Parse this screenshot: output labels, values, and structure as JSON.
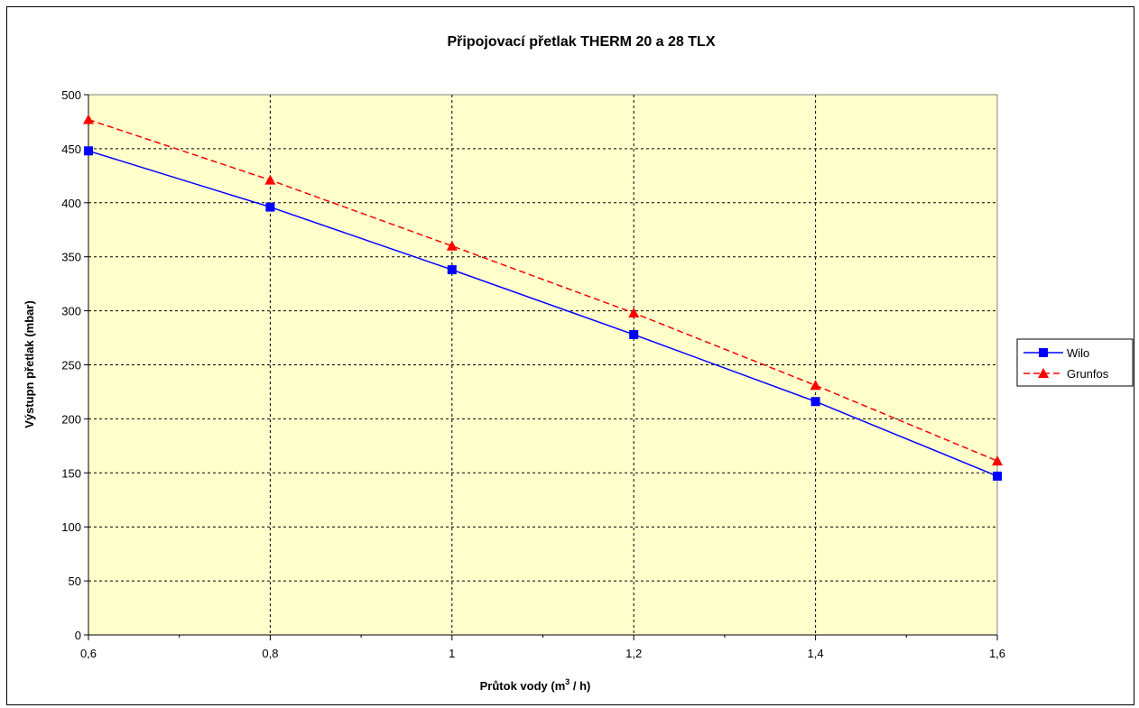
{
  "chart_data": {
    "type": "line",
    "title": "Připojovací přetlak THERM 20 a 28 TLX",
    "xlabel_main": "Průtok vody (m",
    "xlabel_sup": "3",
    "xlabel_tail": " / h)",
    "ylabel": "Výstupn přetlak (mbar)",
    "x": [
      0.6,
      0.8,
      1.0,
      1.2,
      1.4,
      1.6
    ],
    "x_tick_labels": [
      "0,6",
      "0,8",
      "1",
      "1,2",
      "1,4",
      "1,6"
    ],
    "xlim": [
      0.6,
      1.6
    ],
    "ylim": [
      0,
      500
    ],
    "y_ticks": [
      0,
      50,
      100,
      150,
      200,
      250,
      300,
      350,
      400,
      450,
      500
    ],
    "grid": true,
    "legend_position": "right",
    "plot_background": "#ffffcc",
    "series": [
      {
        "name": "Wilo",
        "values": [
          448,
          396,
          338,
          278,
          216,
          147
        ],
        "color": "#0000ff",
        "line_style": "solid",
        "marker": "square"
      },
      {
        "name": "Grunfos",
        "values": [
          477,
          421,
          360,
          298,
          231,
          161
        ],
        "color": "#ff0000",
        "line_style": "dashed",
        "marker": "triangle"
      }
    ]
  }
}
